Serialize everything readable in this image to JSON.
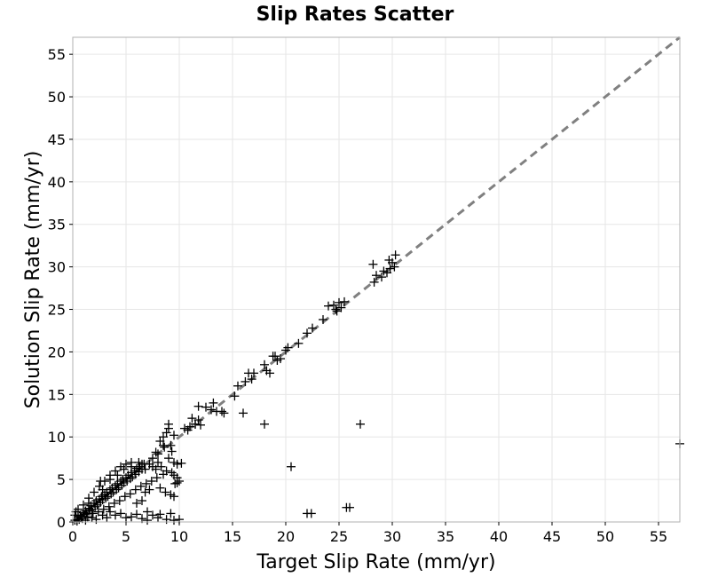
{
  "chart_data": {
    "type": "scatter",
    "title": "Slip Rates Scatter",
    "xlabel": "Target Slip Rate (mm/yr)",
    "ylabel": "Solution Slip Rate (mm/yr)",
    "xlim": [
      0,
      57
    ],
    "ylim": [
      0,
      57
    ],
    "xticks": [
      "0",
      "5",
      "10",
      "15",
      "20",
      "25",
      "30",
      "35",
      "40",
      "45",
      "50",
      "55"
    ],
    "yticks": [
      "0",
      "5",
      "10",
      "15",
      "20",
      "25",
      "30",
      "35",
      "40",
      "45",
      "50",
      "55"
    ],
    "grid": true,
    "marker": "plus",
    "colors": {
      "points": "#000000",
      "reference_line": "#808080",
      "grid": "#e6e6e6",
      "frame": "#b0b0b0"
    },
    "reference_line": {
      "style": "dashed",
      "from": [
        0,
        0
      ],
      "to": [
        57,
        57
      ]
    },
    "series": [
      {
        "points": [
          [
            0.2,
            0.2
          ],
          [
            0.4,
            0.3
          ],
          [
            0.5,
            0.6
          ],
          [
            0.7,
            0.8
          ],
          [
            0.8,
            0.6
          ],
          [
            1.0,
            1.1
          ],
          [
            1.1,
            0.9
          ],
          [
            1.2,
            1.3
          ],
          [
            1.3,
            1.0
          ],
          [
            1.5,
            1.6
          ],
          [
            1.6,
            1.3
          ],
          [
            1.7,
            1.9
          ],
          [
            1.8,
            1.5
          ],
          [
            2.0,
            2.2
          ],
          [
            2.1,
            1.8
          ],
          [
            2.2,
            2.5
          ],
          [
            2.3,
            2.0
          ],
          [
            2.5,
            2.7
          ],
          [
            2.6,
            2.3
          ],
          [
            2.7,
            3.0
          ],
          [
            2.8,
            2.6
          ],
          [
            3.0,
            3.2
          ],
          [
            3.1,
            2.8
          ],
          [
            3.2,
            3.5
          ],
          [
            3.3,
            3.0
          ],
          [
            3.5,
            3.8
          ],
          [
            3.6,
            3.3
          ],
          [
            3.7,
            4.0
          ],
          [
            3.8,
            3.5
          ],
          [
            4.0,
            4.3
          ],
          [
            4.1,
            3.8
          ],
          [
            4.2,
            4.5
          ],
          [
            4.3,
            4.0
          ],
          [
            4.5,
            4.8
          ],
          [
            4.6,
            4.3
          ],
          [
            4.7,
            5.0
          ],
          [
            4.8,
            4.6
          ],
          [
            5.0,
            5.2
          ],
          [
            5.1,
            4.8
          ],
          [
            5.2,
            5.5
          ],
          [
            5.4,
            5.1
          ],
          [
            5.5,
            5.8
          ],
          [
            5.6,
            5.3
          ],
          [
            5.8,
            6.0
          ],
          [
            5.9,
            5.6
          ],
          [
            6.0,
            6.3
          ],
          [
            6.2,
            5.9
          ],
          [
            6.3,
            6.5
          ],
          [
            6.5,
            6.2
          ],
          [
            6.7,
            6.8
          ],
          [
            1.0,
            2.0
          ],
          [
            1.5,
            2.8
          ],
          [
            2.0,
            3.5
          ],
          [
            2.5,
            4.2
          ],
          [
            3.0,
            4.8
          ],
          [
            3.5,
            5.5
          ],
          [
            4.0,
            6.0
          ],
          [
            4.5,
            6.5
          ],
          [
            5.0,
            6.8
          ],
          [
            5.5,
            7.0
          ],
          [
            1.2,
            0.2
          ],
          [
            1.8,
            0.5
          ],
          [
            2.2,
            0.3
          ],
          [
            2.8,
            0.8
          ],
          [
            3.2,
            0.5
          ],
          [
            3.5,
            1.2
          ],
          [
            4.0,
            0.8
          ],
          [
            4.5,
            1.0
          ],
          [
            5.0,
            0.5
          ],
          [
            5.5,
            0.6
          ],
          [
            6.0,
            0.9
          ],
          [
            6.5,
            0.4
          ],
          [
            7.5,
            0.8
          ],
          [
            8.0,
            0.5
          ],
          [
            8.2,
            0.9
          ],
          [
            9.2,
            1.0
          ],
          [
            9.5,
            0.2
          ],
          [
            10.0,
            0.3
          ],
          [
            8.8,
            0.3
          ],
          [
            7.0,
            0.2
          ],
          [
            0.3,
            1.2
          ],
          [
            0.2,
            0.8
          ],
          [
            0.5,
            1.5
          ],
          [
            0.4,
            0.1
          ],
          [
            0.6,
            0.3
          ],
          [
            0.9,
            0.4
          ],
          [
            1.4,
            0.6
          ],
          [
            1.9,
            1.0
          ],
          [
            2.4,
            1.2
          ],
          [
            2.9,
            1.5
          ],
          [
            3.4,
            1.8
          ],
          [
            3.9,
            2.2
          ],
          [
            4.4,
            2.5
          ],
          [
            4.9,
            3.0
          ],
          [
            5.4,
            3.3
          ],
          [
            5.9,
            3.8
          ],
          [
            6.4,
            4.2
          ],
          [
            6.9,
            4.5
          ],
          [
            7.4,
            4.8
          ],
          [
            7.9,
            5.2
          ],
          [
            8.0,
            8.0
          ],
          [
            8.2,
            9.5
          ],
          [
            8.5,
            10.0
          ],
          [
            8.8,
            10.5
          ],
          [
            9.0,
            11.0
          ],
          [
            9.0,
            11.5
          ],
          [
            9.2,
            9.0
          ],
          [
            9.5,
            10.2
          ],
          [
            8.6,
            8.8
          ],
          [
            9.3,
            8.3
          ],
          [
            7.5,
            7.5
          ],
          [
            7.8,
            8.2
          ],
          [
            8.0,
            7.0
          ],
          [
            8.3,
            6.5
          ],
          [
            8.5,
            9.0
          ],
          [
            9.0,
            7.5
          ],
          [
            9.5,
            7.0
          ],
          [
            9.8,
            6.8
          ],
          [
            10.2,
            6.9
          ],
          [
            9.8,
            5.2
          ],
          [
            10.0,
            4.8
          ],
          [
            9.6,
            4.5
          ],
          [
            9.2,
            3.2
          ],
          [
            9.5,
            3.0
          ],
          [
            8.7,
            3.5
          ],
          [
            7.2,
            3.8
          ],
          [
            6.8,
            3.5
          ],
          [
            6.5,
            2.5
          ],
          [
            6.0,
            2.2
          ],
          [
            7.0,
            1.2
          ],
          [
            9.5,
            5.5
          ],
          [
            9.8,
            4.6
          ],
          [
            9.3,
            5.8
          ],
          [
            8.8,
            6.0
          ],
          [
            8.5,
            5.6
          ],
          [
            8.2,
            4.0
          ],
          [
            7.8,
            6.2
          ],
          [
            7.5,
            6.5
          ],
          [
            7.2,
            6.8
          ],
          [
            6.8,
            6.2
          ],
          [
            10.5,
            11.0
          ],
          [
            11.0,
            11.2
          ],
          [
            11.5,
            11.5
          ],
          [
            11.8,
            12.0
          ],
          [
            12.0,
            11.4
          ],
          [
            11.8,
            13.6
          ],
          [
            11.2,
            12.2
          ],
          [
            10.8,
            10.8
          ],
          [
            12.5,
            13.5
          ],
          [
            13.0,
            13.2
          ],
          [
            13.5,
            13.0
          ],
          [
            13.2,
            14.0
          ],
          [
            14.0,
            13.0
          ],
          [
            14.2,
            12.8
          ],
          [
            11.5,
            11.5
          ],
          [
            15.2,
            14.8
          ],
          [
            15.5,
            16.0
          ],
          [
            16.0,
            12.8
          ],
          [
            16.2,
            16.5
          ],
          [
            16.5,
            17.5
          ],
          [
            16.8,
            16.8
          ],
          [
            17.0,
            17.5
          ],
          [
            18.0,
            18.5
          ],
          [
            18.2,
            17.8
          ],
          [
            18.5,
            17.5
          ],
          [
            19.0,
            19.5
          ],
          [
            19.2,
            19.0
          ],
          [
            19.5,
            19.2
          ],
          [
            18.0,
            11.5
          ],
          [
            18.8,
            19.5
          ],
          [
            20.0,
            20.2
          ],
          [
            20.2,
            20.5
          ],
          [
            21.2,
            21.0
          ],
          [
            22.0,
            22.2
          ],
          [
            22.5,
            22.8
          ],
          [
            23.5,
            23.8
          ],
          [
            24.0,
            25.4
          ],
          [
            24.5,
            25.5
          ],
          [
            24.8,
            24.8
          ],
          [
            25.0,
            25.8
          ],
          [
            25.2,
            25.2
          ],
          [
            25.5,
            25.9
          ],
          [
            24.7,
            25.0
          ],
          [
            28.3,
            28.2
          ],
          [
            28.5,
            29.0
          ],
          [
            28.2,
            30.3
          ],
          [
            29.0,
            28.8
          ],
          [
            29.5,
            29.3
          ],
          [
            29.7,
            30.8
          ],
          [
            30.0,
            30.5
          ],
          [
            30.3,
            31.4
          ],
          [
            29.2,
            29.5
          ],
          [
            29.8,
            29.8
          ],
          [
            30.2,
            30.0
          ],
          [
            20.5,
            6.5
          ],
          [
            22.0,
            1.0
          ],
          [
            22.4,
            1.0
          ],
          [
            25.7,
            1.7
          ],
          [
            26.0,
            1.7
          ],
          [
            27.0,
            11.5
          ],
          [
            57.0,
            9.2
          ],
          [
            3.5,
            5.0
          ],
          [
            4.2,
            5.5
          ],
          [
            5.5,
            6.5
          ],
          [
            6.5,
            6.8
          ],
          [
            6.2,
            7.0
          ],
          [
            2.8,
            3.8
          ],
          [
            1.5,
            2.2
          ],
          [
            2.6,
            4.8
          ],
          [
            4.8,
            6.2
          ]
        ]
      }
    ]
  }
}
